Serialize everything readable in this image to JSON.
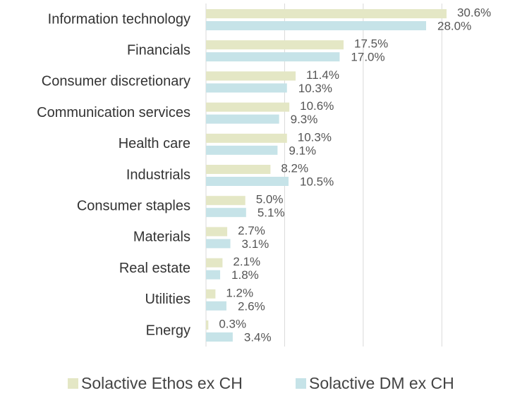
{
  "chart_data": {
    "type": "barh",
    "categories": [
      "Information technology",
      "Financials",
      "Consumer discretionary",
      "Communication services",
      "Health care",
      "Industrials",
      "Consumer staples",
      "Materials",
      "Real estate",
      "Utilities",
      "Energy"
    ],
    "series": [
      {
        "name": "Solactive Ethos ex CH",
        "color": "#e4e7c5",
        "values": [
          30.6,
          17.5,
          11.4,
          10.6,
          10.3,
          8.2,
          5.0,
          2.7,
          2.1,
          1.2,
          0.3
        ],
        "value_labels": [
          "30.6%",
          "17.5%",
          "11.4%",
          "10.6%",
          "10.3%",
          "8.2%",
          "5.0%",
          "2.7%",
          "2.1%",
          "1.2%",
          "0.3%"
        ]
      },
      {
        "name": "Solactive DM ex CH",
        "color": "#c6e3e8",
        "values": [
          28.0,
          17.0,
          10.3,
          9.3,
          9.1,
          10.5,
          5.1,
          3.1,
          1.8,
          2.6,
          3.4
        ],
        "value_labels": [
          "28.0%",
          "17.0%",
          "10.3%",
          "9.3%",
          "9.1%",
          "10.5%",
          "5.1%",
          "3.1%",
          "1.8%",
          "2.6%",
          "3.4%"
        ]
      }
    ],
    "xlim": [
      0,
      35
    ],
    "xticks": [
      0,
      10,
      20,
      30
    ],
    "grid": true,
    "legend": "bottom"
  }
}
